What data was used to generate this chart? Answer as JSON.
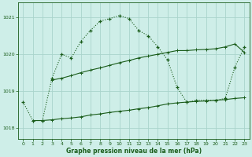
{
  "title": "Graphe pression niveau de la mer (hPa)",
  "background_color": "#ceeee8",
  "grid_color": "#aad4cc",
  "line_color": "#1a5c1a",
  "xlim": [
    -0.5,
    23.5
  ],
  "ylim": [
    1017.7,
    1021.4
  ],
  "yticks": [
    1018,
    1019,
    1020,
    1021
  ],
  "xticks": [
    0,
    1,
    2,
    3,
    4,
    5,
    6,
    7,
    8,
    9,
    10,
    11,
    12,
    13,
    14,
    15,
    16,
    17,
    18,
    19,
    20,
    21,
    22,
    23
  ],
  "series1_x": [
    0,
    1,
    2,
    3,
    4,
    5,
    6,
    7,
    8,
    9,
    10,
    11,
    12,
    13,
    14,
    15,
    16,
    17,
    18,
    19,
    20,
    21,
    22,
    23
  ],
  "series1_y": [
    1018.7,
    1018.2,
    1018.2,
    1019.35,
    1020.0,
    1019.9,
    1020.35,
    1020.65,
    1020.9,
    1020.97,
    1021.05,
    1020.97,
    1020.65,
    1020.5,
    1020.2,
    1019.85,
    1019.1,
    1018.7,
    1018.75,
    1018.75,
    1018.75,
    1018.8,
    1019.65,
    1020.2
  ],
  "series2_x": [
    3,
    4,
    5,
    6,
    7,
    8,
    9,
    10,
    11,
    12,
    13,
    14,
    15,
    16,
    17,
    18,
    19,
    20,
    21,
    22,
    23
  ],
  "series2_y": [
    1019.3,
    1019.35,
    1019.42,
    1019.5,
    1019.57,
    1019.63,
    1019.7,
    1019.77,
    1019.83,
    1019.9,
    1019.95,
    1020.0,
    1020.05,
    1020.1,
    1020.1,
    1020.12,
    1020.13,
    1020.15,
    1020.2,
    1020.28,
    1020.05
  ],
  "series3_x": [
    1,
    2,
    3,
    4,
    5,
    6,
    7,
    8,
    9,
    10,
    11,
    12,
    13,
    14,
    15,
    16,
    17,
    18,
    19,
    20,
    21,
    22,
    23
  ],
  "series3_y": [
    1018.2,
    1018.2,
    1018.22,
    1018.25,
    1018.27,
    1018.3,
    1018.35,
    1018.38,
    1018.42,
    1018.45,
    1018.48,
    1018.52,
    1018.55,
    1018.6,
    1018.65,
    1018.68,
    1018.7,
    1018.72,
    1018.73,
    1018.75,
    1018.77,
    1018.8,
    1018.82
  ]
}
